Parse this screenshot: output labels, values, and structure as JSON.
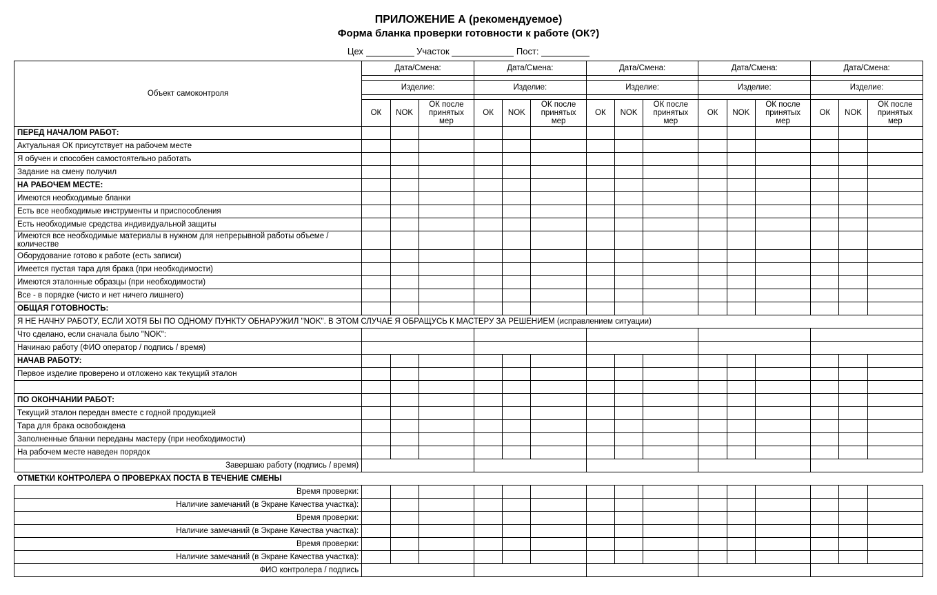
{
  "title": "ПРИЛОЖЕНИЕ А (рекомендуемое)",
  "subtitle": "Форма бланка проверки готовности к работе (ОК?)",
  "header": {
    "workshop": "Цех",
    "section": "Участок",
    "post": "Пост:"
  },
  "cols": {
    "object": "Объект самоконтроля",
    "date_shift": "Дата/Смена:",
    "product": "Изделие:",
    "ok": "ОК",
    "nok": "NOK",
    "ok_after": "ОК после принятых мер"
  },
  "sections": {
    "before": "ПЕРЕД НАЧАЛОМ РАБОТ:",
    "atplace": "НА РАБОЧЕМ МЕСТЕ:",
    "overall": "ОБЩАЯ ГОТОВНОСТЬ:",
    "started": "НАЧАВ РАБОТУ:",
    "finish": "ПО ОКОНЧАНИИ РАБОТ:",
    "controller": "ОТМЕТКИ КОНТРОЛЕРА О ПРОВЕРКАХ ПОСТА В ТЕЧЕНИЕ СМЕНЫ"
  },
  "rows": {
    "r1": "Актуальная ОК присутствует на рабочем месте",
    "r2": "Я обучен и способен самостоятельно работать",
    "r3": "Задание на смену получил",
    "r4": "Имеются необходимые бланки",
    "r5": "Есть все необходимые инструменты и приспособления",
    "r6": "Есть необходимые средства индивидуальной защиты",
    "r7": "Имеются все необходимые материалы в нужном для непрерывной работы объеме / количестве",
    "r8": "Оборудование готово к работе (есть записи)",
    "r9": "Имеется пустая тара для брака (при необходимости)",
    "r10": "Имеются эталонные образцы (при необходимости)",
    "r11": "Все - в порядке (чисто и нет ничего лишнего)",
    "warn": "Я НЕ НАЧНУ РАБОТУ, ЕСЛИ ХОТЯ БЫ ПО ОДНОМУ ПУНКТУ ОБНАРУЖИЛ \"NOK\". В ЭТОМ СЛУЧАЕ Я ОБРАЩУСЬ К МАСТЕРУ ЗА РЕШЕНИЕМ (исправлением ситуации)",
    "r12": "Что сделано, если сначала было \"NOK\":",
    "r13": "Начинаю работу (ФИО оператор / подпись / время)",
    "r14": "Первое изделие проверено и отложено как текущий эталон",
    "r15": "Текущий эталон передан вместе с годной продукцией",
    "r16": "Тара для брака освобождена",
    "r17": "Заполненные бланки переданы мастеру (при необходимости)",
    "r18": "На рабочем месте наведен порядок",
    "r19": "Завершаю работу (подпись / время)",
    "c1": "Время проверки:",
    "c2": "Наличие замечаний (в Экране Качества участка):",
    "c3": "ФИО контролера / подпись"
  }
}
